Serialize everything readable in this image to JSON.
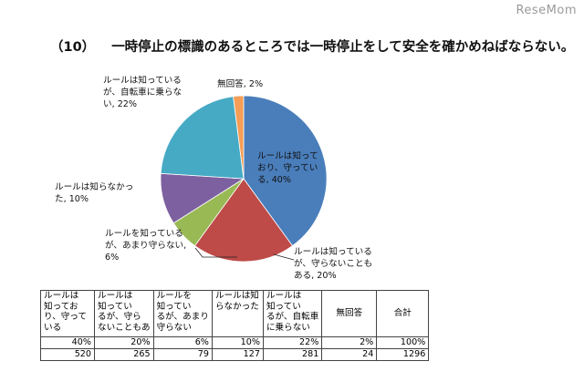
{
  "watermark": "ReseMom",
  "question": {
    "number": "（10）",
    "text": "一時停止の標識のあるところでは一時停止をして安全を確かめねばならない。"
  },
  "chart_data": {
    "type": "pie",
    "slices": [
      {
        "label": "ルールは知っており、守っている",
        "percent": 40,
        "count": 520,
        "color": "#4a7ebb"
      },
      {
        "label": "ルールは知っているが、守らないこともある",
        "percent": 20,
        "count": 265,
        "color": "#be4b48"
      },
      {
        "label": "ルールを知っているが、あまり守らない",
        "percent": 6,
        "count": 79,
        "color": "#98b954"
      },
      {
        "label": "ルールは知らなかった",
        "percent": 10,
        "count": 127,
        "color": "#7d60a0"
      },
      {
        "label": "ルールは知っているが、自転車に乗らない",
        "percent": 22,
        "count": 281,
        "color": "#46aac5"
      },
      {
        "label": "無回答",
        "percent": 2,
        "count": 24,
        "color": "#f59d56"
      }
    ],
    "total_count": 1296
  },
  "labels": {
    "s0": "ルールは知って\nおり、守ってい\nる, 40%",
    "s1": "ルールは知っている\nが、守らないことも\nある, 20%",
    "s2": "ルールを知っている\nが、あまり守らない,\n6%",
    "s3": "ルールは知らなかっ\nた, 10%",
    "s4": "ルールは知っている\nが、自転車に乗らな\nい, 22%",
    "s5": "無回答, 2%"
  },
  "table": {
    "headers": [
      "ルールは\n知ってお\nり、守って\nいる",
      "ルールは\n知ってい\nるが、守ら\nないこともあ",
      "ルールを\n知ってい\nるが、あまり\n守らない",
      "ルールは知\nらなかった",
      "ルールは\n知ってい\nるが、自転車\nに乗らない",
      "無回答",
      "合計"
    ],
    "percent_row": [
      "40%",
      "20%",
      "6%",
      "10%",
      "22%",
      "2%",
      "100%"
    ],
    "count_row": [
      "520",
      "265",
      "79",
      "127",
      "281",
      "24",
      "1296"
    ]
  }
}
